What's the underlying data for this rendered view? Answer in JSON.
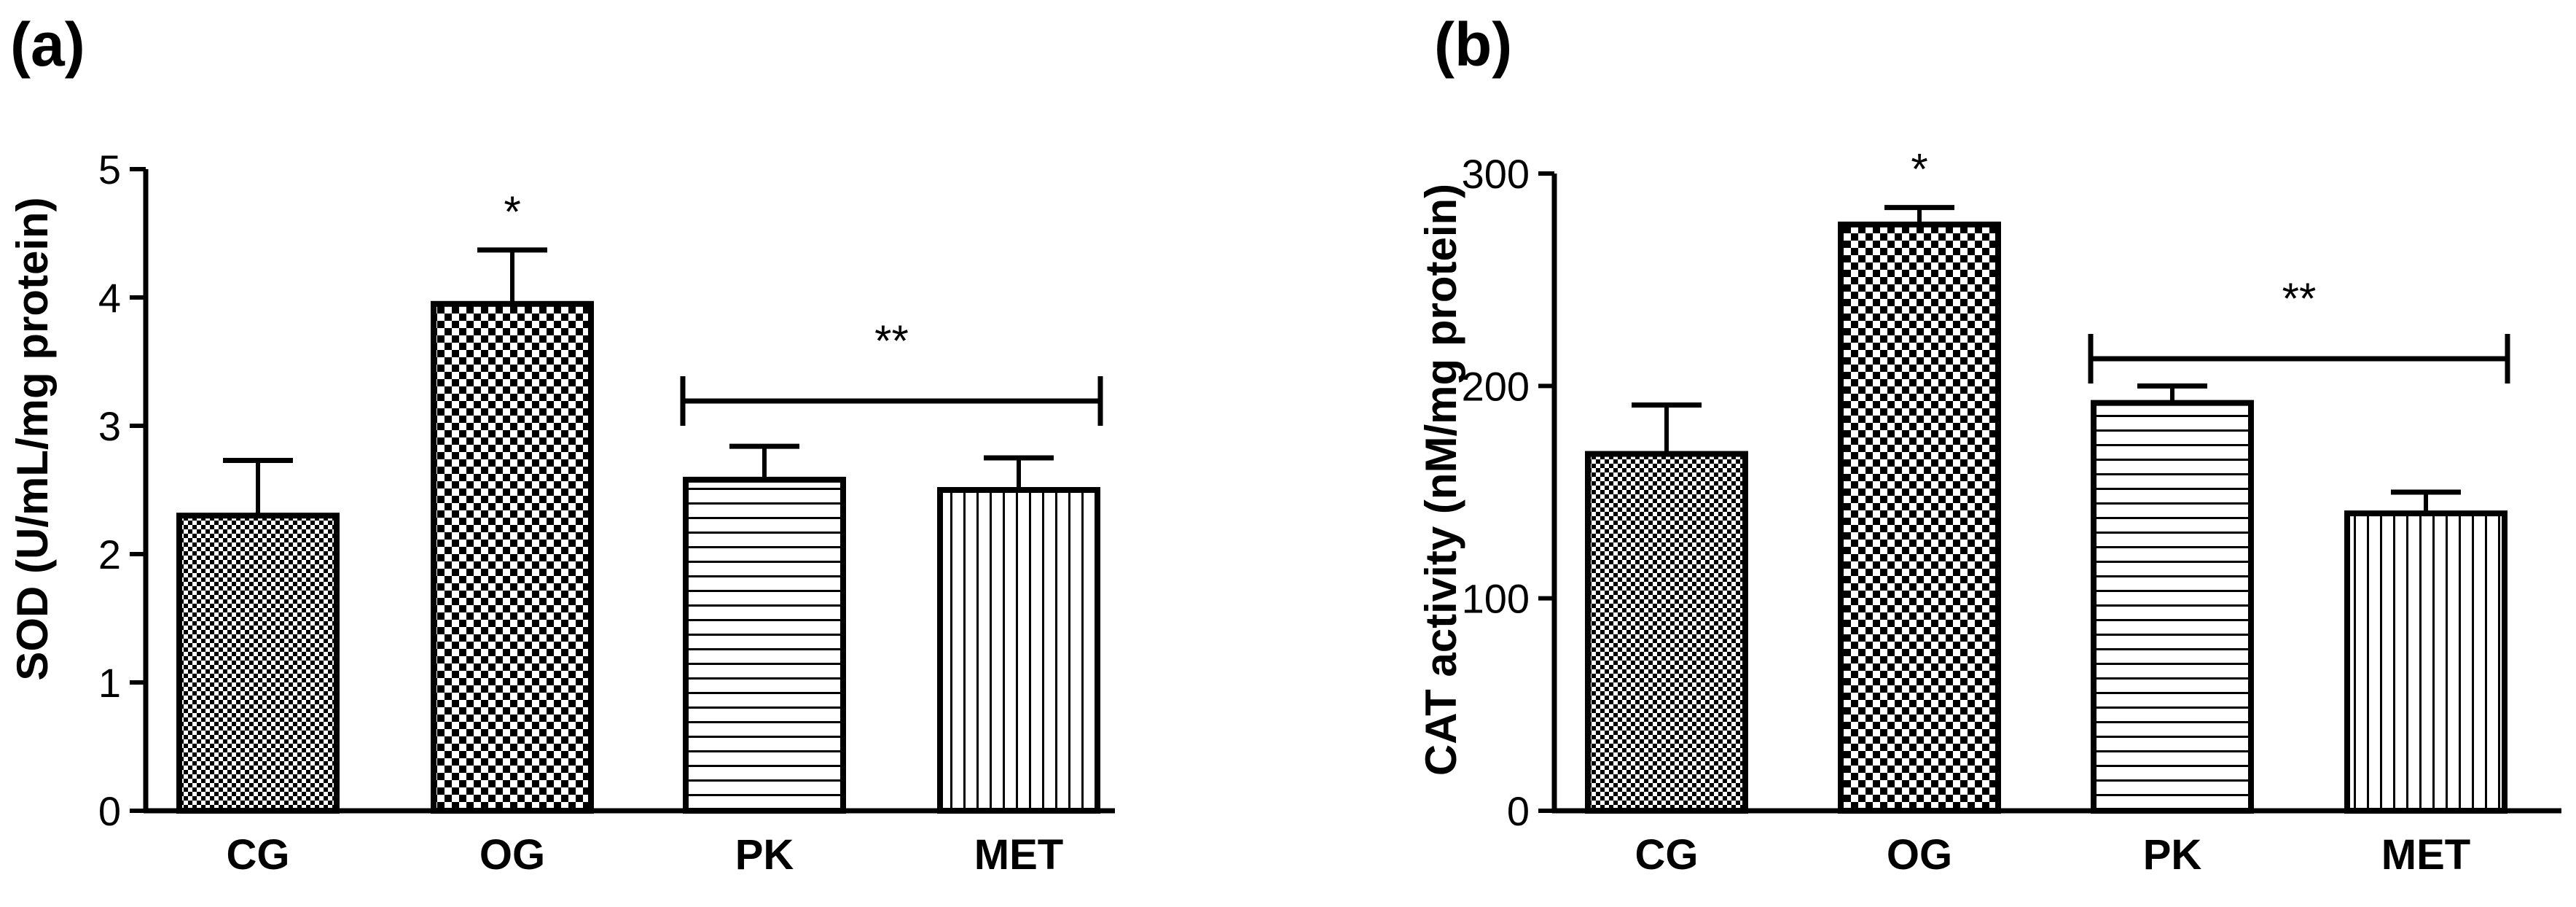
{
  "chart_data": [
    {
      "type": "bar",
      "panel_label": "(a)",
      "ylabel": "SOD (U/mL/mg protein)",
      "xlabel": "",
      "ylim": [
        0,
        5
      ],
      "yticks": [
        0,
        1,
        2,
        3,
        4,
        5
      ],
      "categories": [
        "CG",
        "OG",
        "PK",
        "MET"
      ],
      "patterns": [
        "fine-check",
        "coarse-check",
        "horizontal-stripes",
        "vertical-stripes"
      ],
      "values": [
        2.3,
        3.95,
        2.58,
        2.5
      ],
      "errors": [
        0.43,
        0.42,
        0.26,
        0.25
      ],
      "annotations": [
        {
          "text": "*",
          "category": "OG"
        },
        {
          "text": "**",
          "bracket_from": "PK",
          "bracket_to": "MET"
        }
      ]
    },
    {
      "type": "bar",
      "panel_label": "(b)",
      "ylabel": "CAT activity (nM/mg protein)",
      "xlabel": "",
      "ylim": [
        0,
        300
      ],
      "yticks": [
        0,
        100,
        200,
        300
      ],
      "categories": [
        "CG",
        "OG",
        "PK",
        "MET"
      ],
      "patterns": [
        "fine-check",
        "coarse-check",
        "horizontal-stripes",
        "vertical-stripes"
      ],
      "values": [
        168,
        276,
        192,
        140
      ],
      "errors": [
        23,
        8,
        8,
        10
      ],
      "annotations": [
        {
          "text": "*",
          "category": "OG"
        },
        {
          "text": "**",
          "bracket_from": "PK",
          "bracket_to": "MET"
        }
      ]
    }
  ]
}
